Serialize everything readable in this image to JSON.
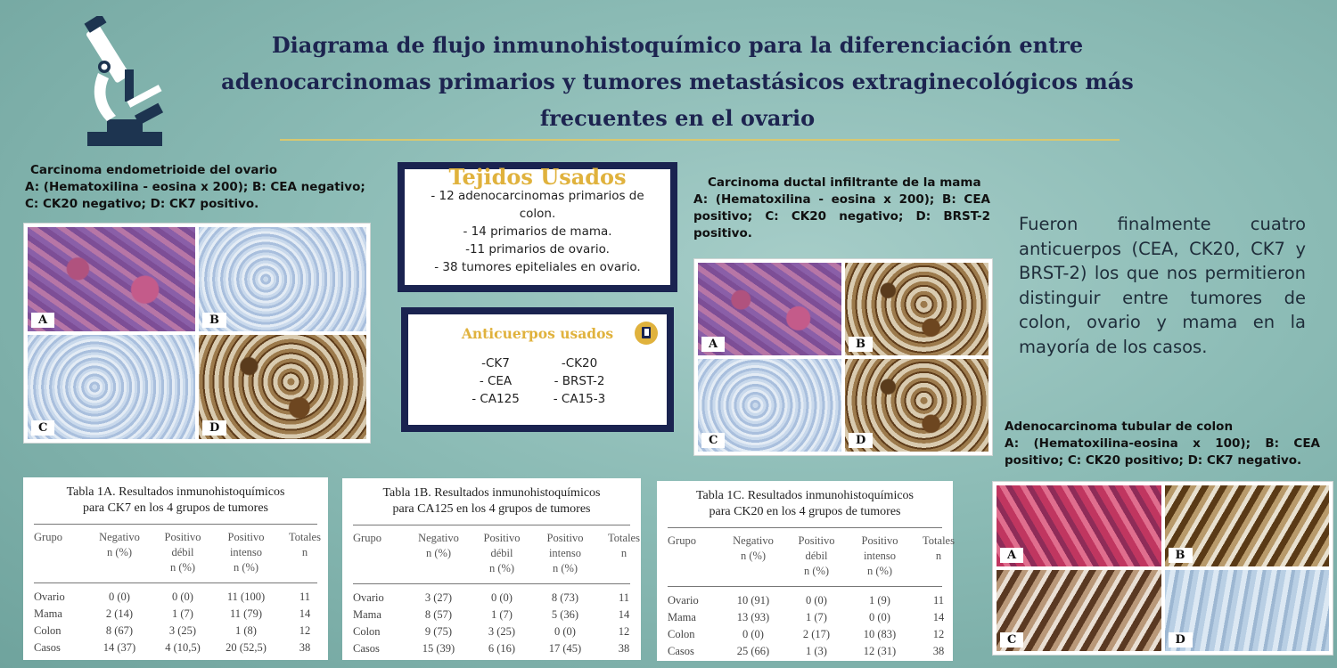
{
  "title": {
    "line1": "Diagrama de flujo inmunohistoquímico para la diferenciación entre",
    "line2": "adenocarcinomas primarios y tumores metastásicos extraginecológicos más",
    "line3": "frecuentes en el ovario"
  },
  "icons": {
    "logo": "microscope-icon",
    "anticuerpos": "book-icon"
  },
  "colors": {
    "navy": "#1a2350",
    "gold": "#e0b23d",
    "teal_bg": "#8bbbb5"
  },
  "panel_endometrioide": {
    "title": "Carcinoma endometrioide del ovario",
    "desc": "A: (Hematoxilina - eosina x 200); B: CEA negativo; C: CK20 negativo; D: CK7 positivo.",
    "labels": [
      "A",
      "B",
      "C",
      "D"
    ]
  },
  "tejidos": {
    "title": "Tejidos Usados",
    "lines": [
      "- 12 adenocarcinomas primarios de colon.",
      "- 14 primarios de mama.",
      "-11 primarios de ovario.",
      "- 38 tumores epiteliales en ovario."
    ]
  },
  "anticuerpos": {
    "title": "Anticuerpos usados",
    "items": [
      "-CK7",
      "-CK20",
      "- CEA",
      "- BRST-2",
      "- CA125",
      "-  CA15-3"
    ]
  },
  "panel_mama": {
    "title": "Carcinoma ductal infiltrante de la mama",
    "desc": "A: (Hematoxilina - eosina x 200); B: CEA positivo; C: CK20 negativo; D: BRST-2 positivo.",
    "labels": [
      "A",
      "B",
      "C",
      "D"
    ]
  },
  "conclusion": "Fueron finalmente cuatro anticuerpos (CEA, CK20, CK7 y BRST-2) los que nos permitieron distinguir entre tumores de colon, ovario y mama en la mayoría de los casos.",
  "panel_colon": {
    "title": "Adenocarcinoma tubular de colon",
    "desc": "A: (Hematoxilina-eosina x 100); B: CEA positivo; C: CK20 positivo; D: CK7 negativo.",
    "labels": [
      "A",
      "B",
      "C",
      "D"
    ]
  },
  "tables": [
    {
      "title1": "Tabla 1A. Resultados inmunohistoquímicos",
      "title2": "para CK7 en los 4 grupos de tumores",
      "headers": [
        "Grupo",
        "Negativo",
        "Positivo débil",
        "Positivo intenso",
        "Totales"
      ],
      "units": [
        "",
        "n (%)",
        "n (%)",
        "n (%)",
        "n"
      ],
      "rows": [
        [
          "Ovario",
          "0 (0)",
          "0 (0)",
          "11 (100)",
          "11"
        ],
        [
          "Mama",
          "2 (14)",
          "1 (7)",
          "11 (79)",
          "14"
        ],
        [
          "Colon",
          "8 (67)",
          "3 (25)",
          "1 (8)",
          "12"
        ],
        [
          "Casos",
          "14 (37)",
          "4 (10,5)",
          "20 (52,5)",
          "38"
        ]
      ]
    },
    {
      "title1": "Tabla 1B. Resultados inmunohistoquímicos",
      "title2": "para CA125 en los 4 grupos de tumores",
      "headers": [
        "Grupo",
        "Negativo",
        "Positivo débil",
        "Positivo intenso",
        "Totales"
      ],
      "units": [
        "",
        "n (%)",
        "n (%)",
        "n (%)",
        "n"
      ],
      "rows": [
        [
          "Ovario",
          "3 (27)",
          "0 (0)",
          "8 (73)",
          "11"
        ],
        [
          "Mama",
          "8 (57)",
          "1 (7)",
          "5 (36)",
          "14"
        ],
        [
          "Colon",
          "9 (75)",
          "3 (25)",
          "0 (0)",
          "12"
        ],
        [
          "Casos",
          "15 (39)",
          "6 (16)",
          "17 (45)",
          "38"
        ]
      ]
    },
    {
      "title1": "Tabla 1C. Resultados inmunohistoquímicos",
      "title2": "para CK20 en los 4 grupos de tumores",
      "headers": [
        "Grupo",
        "Negativo",
        "Positivo débil",
        "Positivo intenso",
        "Totales"
      ],
      "units": [
        "",
        "n (%)",
        "n (%)",
        "n (%)",
        "n"
      ],
      "rows": [
        [
          "Ovario",
          "10 (91)",
          "0 (0)",
          "1 (9)",
          "11"
        ],
        [
          "Mama",
          "13 (93)",
          "1 (7)",
          "0 (0)",
          "14"
        ],
        [
          "Colon",
          "0 (0)",
          "2 (17)",
          "10 (83)",
          "12"
        ],
        [
          "Casos",
          "25 (66)",
          "1 (3)",
          "12 (31)",
          "38"
        ]
      ]
    }
  ]
}
